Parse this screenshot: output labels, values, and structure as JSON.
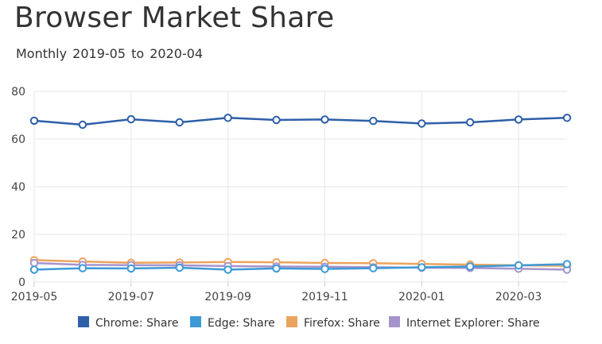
{
  "chart_data": {
    "type": "line",
    "title": "Browser Market Share",
    "subtitle": "Monthly  2019-05 to 2020-04",
    "x": [
      "2019-05",
      "2019-06",
      "2019-07",
      "2019-08",
      "2019-09",
      "2019-10",
      "2019-11",
      "2019-12",
      "2020-01",
      "2020-02",
      "2020-03",
      "2020-04"
    ],
    "x_tick_labels": [
      "2019-05",
      "2019-07",
      "2019-09",
      "2019-11",
      "2020-01",
      "2020-03"
    ],
    "ylim": [
      0,
      80
    ],
    "y_ticks": [
      0,
      20,
      40,
      60,
      80
    ],
    "grid": true,
    "legend_position": "bottom",
    "series": [
      {
        "name": "Chrome: Share",
        "color": "#2e5fa8",
        "values": [
          67.7,
          66.0,
          68.3,
          67.0,
          68.9,
          68.0,
          68.2,
          67.6,
          66.5,
          67.0,
          68.2,
          68.9
        ]
      },
      {
        "name": "Edge: Share",
        "color": "#3d9ad6",
        "values": [
          5.2,
          5.8,
          5.7,
          6.0,
          5.2,
          5.7,
          5.5,
          5.8,
          6.2,
          6.5,
          7.0,
          7.5
        ]
      },
      {
        "name": "Firefox: Share",
        "color": "#eba45e",
        "values": [
          9.2,
          8.6,
          8.1,
          8.2,
          8.4,
          8.3,
          8.0,
          7.9,
          7.6,
          7.3,
          7.0,
          6.8
        ]
      },
      {
        "name": "Internet Explorer: Share",
        "color": "#a793cc",
        "values": [
          8.0,
          7.2,
          7.1,
          7.0,
          6.7,
          6.5,
          6.4,
          6.2,
          6.0,
          5.9,
          5.6,
          5.2
        ]
      }
    ]
  },
  "legend_extra_color": "#3a9a5a"
}
